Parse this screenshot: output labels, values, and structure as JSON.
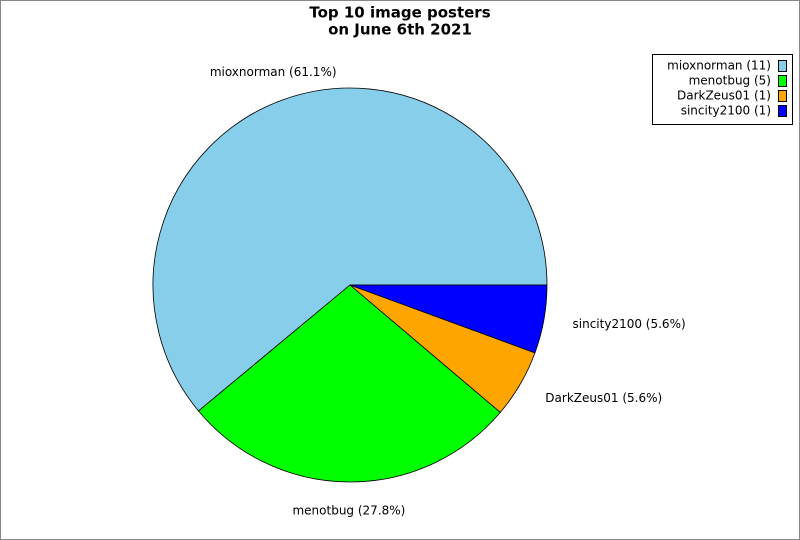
{
  "chart_data": {
    "type": "pie",
    "title": [
      "Top 10 image posters",
      "on June 6th 2021"
    ],
    "values": [
      61.1,
      27.8,
      5.6,
      5.6
    ],
    "value_labels": [
      "mioxnorman (61.1%)",
      "menotbug (27.8%)",
      "DarkZeus01 (5.6%)",
      "sincity2100 (5.6%)"
    ],
    "legend_labels": [
      "mioxnorman (11)",
      "menotbug (5)",
      "DarkZeus01 (1)",
      "sincity2100 (1)"
    ],
    "colors": [
      "#87ceeb",
      "#00ff00",
      "#ffa500",
      "#0000ff"
    ],
    "legend": "top-right"
  }
}
